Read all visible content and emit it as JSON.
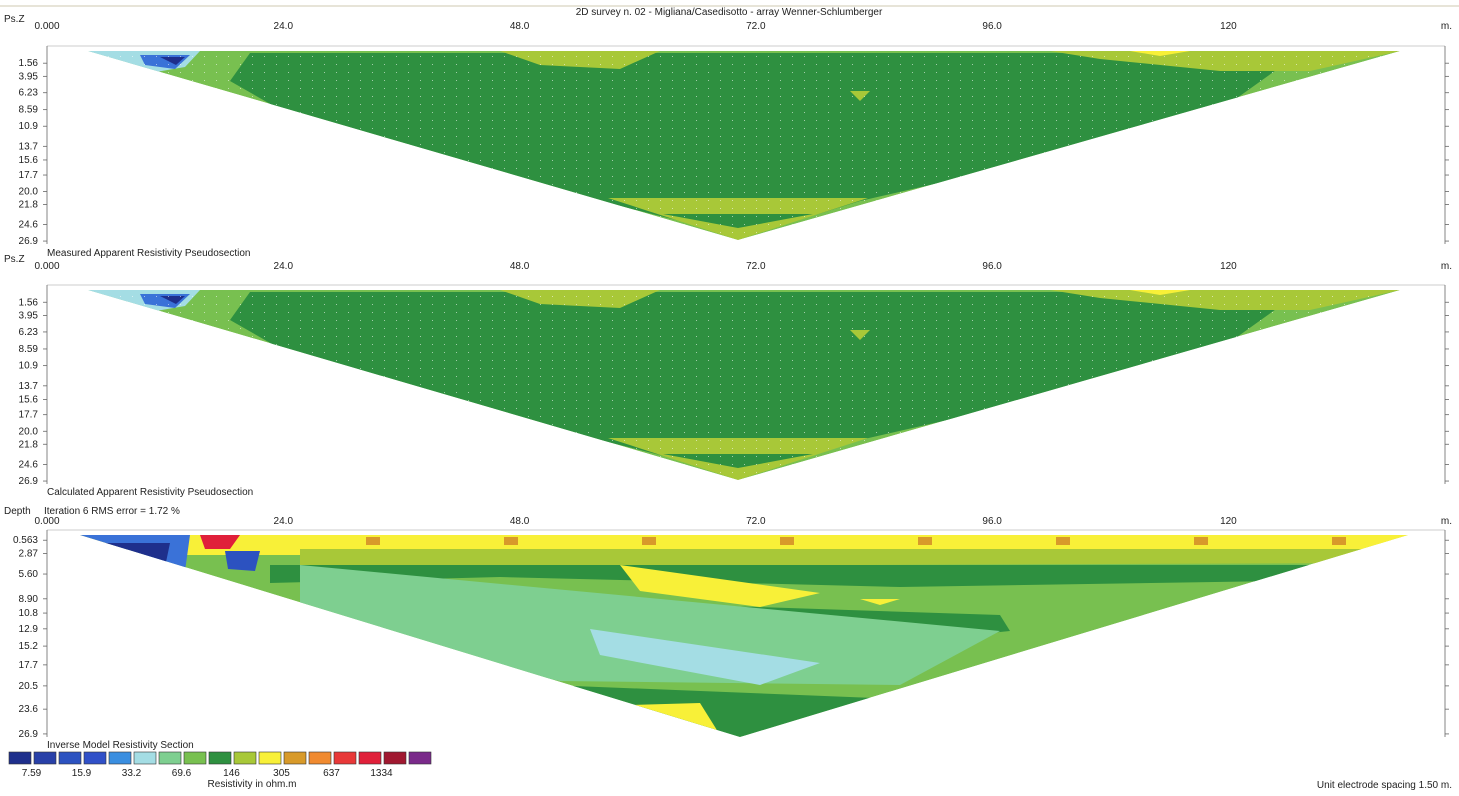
{
  "title": "2D survey n. 02 - Migliana/Casedisotto - array Wenner-Schlumberger",
  "x_unit": "m.",
  "footer": "Unit electrode spacing 1.50 m.",
  "colors": {
    "palette": [
      "#1e2f8c",
      "#2840a8",
      "#2c52c0",
      "#3a72d8",
      "#3aa0e0",
      "#a4dde4",
      "#7ecf90",
      "#78c050",
      "#2e9040",
      "#a8c838",
      "#f8f038",
      "#d89a2a",
      "#f08a30",
      "#e83838",
      "#e0203a",
      "#a01830",
      "#7a2a8a"
    ],
    "fill_main": "#2e9040",
    "fill_light": "#78c050",
    "fill_yellowgreen": "#a8c838"
  },
  "chart_data": [
    {
      "type": "heatmap",
      "name": "pseudosection-measured",
      "caption": "Measured Apparent Resistivity Pseudosection",
      "y_axis_label": "Ps.Z",
      "x_ticks": [
        "0.000",
        "24.0",
        "48.0",
        "72.0",
        "96.0",
        "120"
      ],
      "x_range": [
        0,
        142
      ],
      "y_ticks": [
        "1.56",
        "3.95",
        "6.23",
        "8.59",
        "10.9",
        "13.7",
        "15.6",
        "17.7",
        "20.0",
        "21.8",
        "24.6",
        "26.9"
      ],
      "y_values": [
        1.56,
        3.95,
        6.23,
        8.59,
        10.9,
        13.7,
        15.6,
        17.7,
        20.0,
        21.8,
        24.6,
        26.9
      ]
    },
    {
      "type": "heatmap",
      "name": "pseudosection-calculated",
      "caption": "Calculated Apparent Resistivity Pseudosection",
      "y_axis_label": "Ps.Z",
      "x_ticks": [
        "0.000",
        "24.0",
        "48.0",
        "72.0",
        "96.0",
        "120"
      ],
      "x_range": [
        0,
        142
      ],
      "y_ticks": [
        "1.56",
        "3.95",
        "6.23",
        "8.59",
        "10.9",
        "13.7",
        "15.6",
        "17.7",
        "20.0",
        "21.8",
        "24.6",
        "26.9"
      ],
      "y_values": [
        1.56,
        3.95,
        6.23,
        8.59,
        10.9,
        13.7,
        15.6,
        17.7,
        20.0,
        21.8,
        24.6,
        26.9
      ]
    },
    {
      "type": "heatmap",
      "name": "inverse-model",
      "caption": "Inverse Model Resistivity Section",
      "header_note": "Iteration 6 RMS error = 1.72 %",
      "y_axis_label": "Depth",
      "x_ticks": [
        "0.000",
        "24.0",
        "48.0",
        "72.0",
        "96.0",
        "120"
      ],
      "x_range": [
        0,
        142
      ],
      "y_ticks": [
        "0.563",
        "2.87",
        "5.60",
        "8.90",
        "10.8",
        "12.9",
        "15.2",
        "17.7",
        "20.5",
        "23.6",
        "26.9"
      ],
      "y_values": [
        0.563,
        2.87,
        5.6,
        8.9,
        10.8,
        12.9,
        15.2,
        17.7,
        20.5,
        23.6,
        26.9
      ]
    }
  ],
  "legend": {
    "label": "Resistivity in ohm.m",
    "values": [
      "7.59",
      "15.9",
      "33.2",
      "69.6",
      "146",
      "305",
      "637",
      "1334"
    ],
    "swatches": [
      "#1e2f8c",
      "#2840a8",
      "#2c52c0",
      "#3050c8",
      "#3a8ee0",
      "#a4dde4",
      "#7ecf90",
      "#78c050",
      "#2e9040",
      "#a8c838",
      "#f8f038",
      "#d89a2a",
      "#f08a30",
      "#e83838",
      "#e0203a",
      "#a01830",
      "#7a2a8a"
    ]
  }
}
